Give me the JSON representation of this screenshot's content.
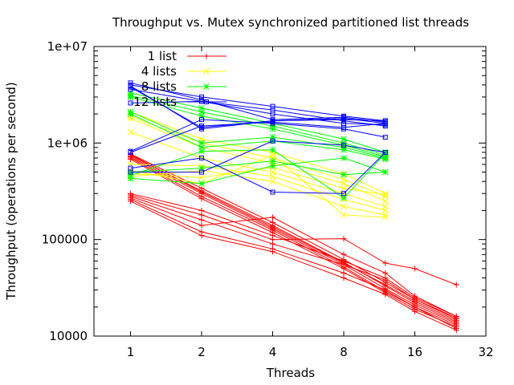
{
  "chart_data": {
    "type": "line",
    "title": "Throughput vs. Mutex synchronized partitioned list threads",
    "xlabel": "Threads",
    "ylabel": "Throughput (operations per second)",
    "xscale": "log2",
    "yscale": "log10",
    "xlim": [
      0.7,
      32
    ],
    "ylim": [
      10000,
      10000000
    ],
    "xticks": [
      1,
      2,
      4,
      8,
      16,
      32
    ],
    "xtick_labels": [
      "1",
      "2",
      "4",
      "8",
      "16",
      "32"
    ],
    "yticks": [
      10000,
      100000,
      1000000,
      10000000
    ],
    "ytick_labels": [
      "10000",
      "100000",
      "1e+06",
      "1e+07"
    ],
    "grid": false,
    "legend_position": "top-left",
    "series": [
      {
        "name": "1 list",
        "color": "#ff0000",
        "marker": "plus",
        "runs": [
          {
            "x": [
              1,
              2,
              4,
              8,
              12,
              16,
              24
            ],
            "y": [
              770000,
              340000,
              150000,
              62000,
              36000,
              24000,
              15000
            ]
          },
          {
            "x": [
              1,
              2,
              4,
              8,
              12,
              16,
              24
            ],
            "y": [
              740000,
              320000,
              140000,
              58000,
              33000,
              22000,
              14000
            ]
          },
          {
            "x": [
              1,
              2,
              4,
              8,
              12,
              16,
              24
            ],
            "y": [
              720000,
              300000,
              130000,
              55000,
              31000,
              21000,
              13500
            ]
          },
          {
            "x": [
              1,
              2,
              4,
              8,
              12,
              16,
              24
            ],
            "y": [
              700000,
              280000,
              125000,
              52000,
              29000,
              20000,
              13000
            ]
          },
          {
            "x": [
              1,
              2,
              4,
              8,
              12,
              16,
              24
            ],
            "y": [
              680000,
              265000,
              118000,
              50000,
              28000,
              19000,
              12500
            ]
          },
          {
            "x": [
              1,
              2,
              4,
              8,
              12,
              16,
              24
            ],
            "y": [
              760000,
              310000,
              135000,
              57000,
              34000,
              23000,
              14500
            ]
          },
          {
            "x": [
              1,
              2,
              4,
              8,
              12,
              16,
              24
            ],
            "y": [
              300000,
              200000,
              110000,
              60000,
              40000,
              25000,
              16000
            ]
          },
          {
            "x": [
              1,
              2,
              4,
              8,
              12,
              16,
              24
            ],
            "y": [
              280000,
              160000,
              90000,
              55000,
              38000,
              24000,
              15500
            ]
          },
          {
            "x": [
              1,
              2,
              4,
              8,
              12,
              16,
              24
            ],
            "y": [
              260000,
              120000,
              80000,
              45000,
              30000,
              20000,
              12000
            ]
          },
          {
            "x": [
              1,
              2,
              4,
              8,
              12,
              16,
              24
            ],
            "y": [
              250000,
              110000,
              75000,
              40000,
              27000,
              18000,
              11500
            ]
          },
          {
            "x": [
              1,
              2,
              4,
              8,
              12,
              16,
              24
            ],
            "y": [
              290000,
              180000,
              100000,
              102000,
              57000,
              50000,
              34000
            ]
          },
          {
            "x": [
              1,
              2,
              4,
              8,
              12,
              16,
              24
            ],
            "y": [
              270000,
              140000,
              170000,
              70000,
              45000,
              26000,
              16000
            ]
          }
        ]
      },
      {
        "name": "4 lists",
        "color": "#ffff00",
        "marker": "x",
        "runs": [
          {
            "x": [
              1,
              2,
              4,
              8,
              12
            ],
            "y": [
              2100000,
              1100000,
              800000,
              480000,
              300000
            ]
          },
          {
            "x": [
              1,
              2,
              4,
              8,
              12
            ],
            "y": [
              1900000,
              1000000,
              700000,
              420000,
              280000
            ]
          },
          {
            "x": [
              1,
              2,
              4,
              8,
              12
            ],
            "y": [
              1800000,
              900000,
              620000,
              380000,
              250000
            ]
          },
          {
            "x": [
              1,
              2,
              4,
              8,
              12
            ],
            "y": [
              1300000,
              700000,
              500000,
              300000,
              220000
            ]
          },
          {
            "x": [
              1,
              2,
              4,
              8,
              12
            ],
            "y": [
              600000,
              580000,
              450000,
              260000,
              200000
            ]
          },
          {
            "x": [
              1,
              2,
              4,
              8,
              12
            ],
            "y": [
              450000,
              520000,
              400000,
              220000,
              180000
            ]
          },
          {
            "x": [
              1,
              2,
              4,
              8,
              12
            ],
            "y": [
              520000,
              380000,
              750000,
              180000,
              170000
            ]
          },
          {
            "x": [
              1,
              2,
              4,
              8,
              12
            ],
            "y": [
              480000,
              440000,
              560000,
              340000,
              290000
            ]
          }
        ]
      },
      {
        "name": "8 lists",
        "color": "#00ff00",
        "marker": "star",
        "runs": [
          {
            "x": [
              1,
              2,
              4,
              8,
              12
            ],
            "y": [
              3300000,
              2300000,
              1600000,
              1100000,
              800000
            ]
          },
          {
            "x": [
              1,
              2,
              4,
              8,
              12
            ],
            "y": [
              3100000,
              2100000,
              1500000,
              1000000,
              750000
            ]
          },
          {
            "x": [
              1,
              2,
              4,
              8,
              12
            ],
            "y": [
              3000000,
              1900000,
              1400000,
              950000,
              720000
            ]
          },
          {
            "x": [
              1,
              2,
              4,
              8,
              12
            ],
            "y": [
              2100000,
              1000000,
              1150000,
              900000,
              700000
            ]
          },
          {
            "x": [
              1,
              2,
              4,
              8,
              12
            ],
            "y": [
              2000000,
              900000,
              1050000,
              850000,
              680000
            ]
          },
          {
            "x": [
              1,
              2,
              4,
              8,
              12
            ],
            "y": [
              500000,
              550000,
              650000,
              470000,
              500000
            ]
          },
          {
            "x": [
              1,
              2,
              4,
              8,
              12
            ],
            "y": [
              430000,
              380000,
              580000,
              700000,
              500000
            ]
          },
          {
            "x": [
              1,
              2,
              4,
              8,
              12
            ],
            "y": [
              460000,
              820000,
              850000,
              270000,
              780000
            ]
          }
        ]
      },
      {
        "name": "12 lists",
        "color": "#0000ff",
        "marker": "square",
        "runs": [
          {
            "x": [
              1,
              2,
              4,
              8,
              12
            ],
            "y": [
              4200000,
              2800000,
              1750000,
              1850000,
              1650000
            ]
          },
          {
            "x": [
              1,
              2,
              4,
              8,
              12
            ],
            "y": [
              4000000,
              3000000,
              2400000,
              1900000,
              1700000
            ]
          },
          {
            "x": [
              1,
              2,
              4,
              8,
              12
            ],
            "y": [
              3800000,
              1450000,
              1700000,
              1800000,
              1600000
            ]
          },
          {
            "x": [
              1,
              2,
              4,
              8,
              12
            ],
            "y": [
              3600000,
              2700000,
              2200000,
              1700000,
              1500000
            ]
          },
          {
            "x": [
              1,
              2,
              4,
              8,
              12
            ],
            "y": [
              2600000,
              2700000,
              2000000,
              1600000,
              1550000
            ]
          },
          {
            "x": [
              1,
              2,
              4,
              8,
              12
            ],
            "y": [
              820000,
              1750000,
              1600000,
              1400000,
              1150000
            ]
          },
          {
            "x": [
              1,
              2,
              4,
              8,
              12
            ],
            "y": [
              800000,
              1500000,
              1650000,
              1450000,
              1600000
            ]
          },
          {
            "x": [
              1,
              2,
              4,
              8,
              12
            ],
            "y": [
              550000,
              700000,
              310000,
              300000,
              800000
            ]
          },
          {
            "x": [
              1,
              2,
              4,
              8,
              12
            ],
            "y": [
              500000,
              500000,
              1050000,
              950000,
              800000
            ]
          },
          {
            "x": [
              1,
              2,
              4,
              8,
              12
            ],
            "y": [
              3900000,
              1400000,
              1700000,
              1750000,
              1700000
            ]
          }
        ]
      }
    ]
  }
}
